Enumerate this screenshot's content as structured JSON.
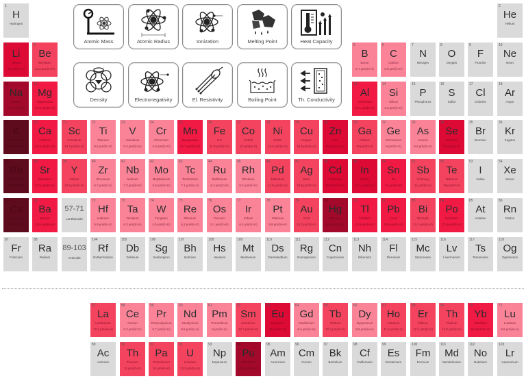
{
  "property_buttons": [
    {
      "label": "Atomic Mass",
      "icon": "scale-atom-icon"
    },
    {
      "label": "Atomic Radius",
      "icon": "atom-radius-icon"
    },
    {
      "label": "Ionization",
      "icon": "atom-ionization-icon"
    },
    {
      "label": "Melting Point",
      "icon": "melting-ice-icon"
    },
    {
      "label": "Heat Capacity",
      "icon": "thermometer-heat-icon"
    },
    {
      "label": "Density",
      "icon": "crystal-lattice-icon"
    },
    {
      "label": "Electronegativity",
      "icon": "atom-electron-icon"
    },
    {
      "label": "El. Resistivity",
      "icon": "cable-wires-icon"
    },
    {
      "label": "Boiling Point",
      "icon": "boiling-pot-icon"
    },
    {
      "label": "Th. Conductivity",
      "icon": "heat-flow-icon"
    }
  ],
  "unit": "µm/(m·K)",
  "elements": [
    {
      "num": "1",
      "sym": "H",
      "name": "Hydrogen",
      "val": "",
      "row": 1,
      "col": 1,
      "shade": "gray"
    },
    {
      "num": "2",
      "sym": "He",
      "name": "Helium",
      "val": "",
      "row": 1,
      "col": 18,
      "shade": "gray"
    },
    {
      "num": "3",
      "sym": "Li",
      "name": "Lithium",
      "val": "46 µm/(m·K)",
      "row": 2,
      "col": 1,
      "shade": "red"
    },
    {
      "num": "4",
      "sym": "Be",
      "name": "Beryllium",
      "val": "11.3 µm/(m·K)",
      "row": 2,
      "col": 2,
      "shade": "mid"
    },
    {
      "num": "5",
      "sym": "B",
      "name": "Boron",
      "val": "5-7 µm/(m·K)",
      "row": 2,
      "col": 13,
      "shade": "light"
    },
    {
      "num": "6",
      "sym": "C",
      "name": "Carbon",
      "val": "0.8 µm/(m·K)",
      "row": 2,
      "col": 14,
      "shade": "light"
    },
    {
      "num": "7",
      "sym": "N",
      "name": "Nitrogen",
      "val": "",
      "row": 2,
      "col": 15,
      "shade": "gray"
    },
    {
      "num": "8",
      "sym": "O",
      "name": "Oxygen",
      "val": "",
      "row": 2,
      "col": 16,
      "shade": "gray"
    },
    {
      "num": "9",
      "sym": "F",
      "name": "Fluorine",
      "val": "",
      "row": 2,
      "col": 17,
      "shade": "gray"
    },
    {
      "num": "10",
      "sym": "Ne",
      "name": "Neon",
      "val": "",
      "row": 2,
      "col": 18,
      "shade": "gray"
    },
    {
      "num": "11",
      "sym": "Na",
      "name": "Sodium",
      "val": "71 µm/(m·K)",
      "row": 3,
      "col": 1,
      "shade": "deep"
    },
    {
      "num": "12",
      "sym": "Mg",
      "name": "Magnesium",
      "val": "24.8 µm/(m·K)",
      "row": 3,
      "col": 2,
      "shade": "hot"
    },
    {
      "num": "13",
      "sym": "Al",
      "name": "Aluminium",
      "val": "23.1 µm/(m·K)",
      "row": 3,
      "col": 13,
      "shade": "hot"
    },
    {
      "num": "14",
      "sym": "Si",
      "name": "Silicon",
      "val": "2.6 µm/(m·K)",
      "row": 3,
      "col": 14,
      "shade": "light"
    },
    {
      "num": "15",
      "sym": "P",
      "name": "Phosphorus",
      "val": "",
      "row": 3,
      "col": 15,
      "shade": "gray"
    },
    {
      "num": "16",
      "sym": "S",
      "name": "Sulfur",
      "val": "",
      "row": 3,
      "col": 16,
      "shade": "gray"
    },
    {
      "num": "17",
      "sym": "Cl",
      "name": "Chlorine",
      "val": "",
      "row": 3,
      "col": 17,
      "shade": "gray"
    },
    {
      "num": "18",
      "sym": "Ar",
      "name": "Argon",
      "val": "",
      "row": 3,
      "col": 18,
      "shade": "gray"
    },
    {
      "num": "19",
      "sym": "K",
      "name": "Potassium",
      "val": "83.3 µm/(m·K)",
      "row": 4,
      "col": 1,
      "shade": "dark"
    },
    {
      "num": "20",
      "sym": "Ca",
      "name": "Calcium",
      "val": "22.3 µm/(m·K)",
      "row": 4,
      "col": 2,
      "shade": "hot"
    },
    {
      "num": "21",
      "sym": "Sc",
      "name": "Scandium",
      "val": "10.2 µm/(m·K)",
      "row": 4,
      "col": 3,
      "shade": "mid"
    },
    {
      "num": "22",
      "sym": "Ti",
      "name": "Titanium",
      "val": "8.6 µm/(m·K)",
      "row": 4,
      "col": 4,
      "shade": "light"
    },
    {
      "num": "23",
      "sym": "V",
      "name": "Vanadium",
      "val": "8.4 µm/(m·K)",
      "row": 4,
      "col": 5,
      "shade": "light"
    },
    {
      "num": "24",
      "sym": "Cr",
      "name": "Chromium",
      "val": "4.9 µm/(m·K)",
      "row": 4,
      "col": 6,
      "shade": "light"
    },
    {
      "num": "25",
      "sym": "Mn",
      "name": "Manganese",
      "val": "21.7 µm/(m·K)",
      "row": 4,
      "col": 7,
      "shade": "hot"
    },
    {
      "num": "26",
      "sym": "Fe",
      "name": "Iron",
      "val": "11.8 µm/(m·K)",
      "row": 4,
      "col": 8,
      "shade": "mid"
    },
    {
      "num": "27",
      "sym": "Co",
      "name": "Cobalt",
      "val": "13 µm/(m·K)",
      "row": 4,
      "col": 9,
      "shade": "mid"
    },
    {
      "num": "28",
      "sym": "Ni",
      "name": "Nickel",
      "val": "13.4 µm/(m·K)",
      "row": 4,
      "col": 10,
      "shade": "mid"
    },
    {
      "num": "29",
      "sym": "Cu",
      "name": "Copper",
      "val": "16.5 µm/(m·K)",
      "row": 4,
      "col": 11,
      "shade": "mid"
    },
    {
      "num": "30",
      "sym": "Zn",
      "name": "Zinc",
      "val": "30.2 µm/(m·K)",
      "row": 4,
      "col": 12,
      "shade": "red"
    },
    {
      "num": "31",
      "sym": "Ga",
      "name": "Gallium",
      "val": "18 µm/(m·K)",
      "row": 4,
      "col": 13,
      "shade": "mid"
    },
    {
      "num": "32",
      "sym": "Ge",
      "name": "Germanium",
      "val": "6 µm/(m·K)",
      "row": 4,
      "col": 14,
      "shade": "light"
    },
    {
      "num": "33",
      "sym": "As",
      "name": "Arsenic",
      "val": "5.6 µm/(m·K)",
      "row": 4,
      "col": 15,
      "shade": "light"
    },
    {
      "num": "34",
      "sym": "Se",
      "name": "Selenium",
      "val": "37 µm/(m·K)",
      "row": 4,
      "col": 16,
      "shade": "red"
    },
    {
      "num": "35",
      "sym": "Br",
      "name": "Bromine",
      "val": "",
      "row": 4,
      "col": 17,
      "shade": "gray"
    },
    {
      "num": "36",
      "sym": "Kr",
      "name": "Krypton",
      "val": "",
      "row": 4,
      "col": 18,
      "shade": "gray"
    },
    {
      "num": "37",
      "sym": "Rb",
      "name": "Rubidium",
      "val": "90 µm/(m·K)",
      "row": 5,
      "col": 1,
      "shade": "dark"
    },
    {
      "num": "38",
      "sym": "Sr",
      "name": "Strontium",
      "val": "22.5 µm/(m·K)",
      "row": 5,
      "col": 2,
      "shade": "hot"
    },
    {
      "num": "39",
      "sym": "Y",
      "name": "Yttrium",
      "val": "10.6 µm/(m·K)",
      "row": 5,
      "col": 3,
      "shade": "mid"
    },
    {
      "num": "40",
      "sym": "Zr",
      "name": "Zirconium",
      "val": "5.7 µm/(m·K)",
      "row": 5,
      "col": 4,
      "shade": "light"
    },
    {
      "num": "41",
      "sym": "Nb",
      "name": "Niobium",
      "val": "7.3 µm/(m·K)",
      "row": 5,
      "col": 5,
      "shade": "light"
    },
    {
      "num": "42",
      "sym": "Mo",
      "name": "Molybdenum",
      "val": "4.8 µm/(m·K)",
      "row": 5,
      "col": 6,
      "shade": "light"
    },
    {
      "num": "43",
      "sym": "Tc",
      "name": "Technetium",
      "val": "7.1 µm/(m·K)",
      "row": 5,
      "col": 7,
      "shade": "light"
    },
    {
      "num": "44",
      "sym": "Ru",
      "name": "Ruthenium",
      "val": "6.4 µm/(m·K)",
      "row": 5,
      "col": 8,
      "shade": "light"
    },
    {
      "num": "45",
      "sym": "Rh",
      "name": "Rhodium",
      "val": "8.2 µm/(m·K)",
      "row": 5,
      "col": 9,
      "shade": "light"
    },
    {
      "num": "46",
      "sym": "Pd",
      "name": "Palladium",
      "val": "11.8 µm/(m·K)",
      "row": 5,
      "col": 10,
      "shade": "mid"
    },
    {
      "num": "47",
      "sym": "Ag",
      "name": "Silver",
      "val": "18.9 µm/(m·K)",
      "row": 5,
      "col": 11,
      "shade": "mid"
    },
    {
      "num": "48",
      "sym": "Cd",
      "name": "Cadmium",
      "val": "30.8 µm/(m·K)",
      "row": 5,
      "col": 12,
      "shade": "red"
    },
    {
      "num": "49",
      "sym": "In",
      "name": "Indium",
      "val": "32.1 µm/(m·K)",
      "row": 5,
      "col": 13,
      "shade": "red"
    },
    {
      "num": "50",
      "sym": "Sn",
      "name": "Tin",
      "val": "22 µm/(m·K)",
      "row": 5,
      "col": 14,
      "shade": "hot"
    },
    {
      "num": "51",
      "sym": "Sb",
      "name": "Antimony",
      "val": "11 µm/(m·K)",
      "row": 5,
      "col": 15,
      "shade": "mid"
    },
    {
      "num": "52",
      "sym": "Te",
      "name": "Tellurium",
      "val": "18 µm/(m·K)",
      "row": 5,
      "col": 16,
      "shade": "mid"
    },
    {
      "num": "53",
      "sym": "I",
      "name": "Iodine",
      "val": "",
      "row": 5,
      "col": 17,
      "shade": "gray"
    },
    {
      "num": "54",
      "sym": "Xe",
      "name": "Xenon",
      "val": "",
      "row": 5,
      "col": 18,
      "shade": "gray"
    },
    {
      "num": "55",
      "sym": "Cs",
      "name": "Caesium",
      "val": "97 µm/(m·K)",
      "row": 6,
      "col": 1,
      "shade": "dark"
    },
    {
      "num": "56",
      "sym": "Ba",
      "name": "Barium",
      "val": "20.6 µm/(m·K)",
      "row": 6,
      "col": 2,
      "shade": "hot"
    },
    {
      "num": "",
      "sym": "57-71",
      "name": "Lanthanoids",
      "val": "",
      "row": 6,
      "col": 3,
      "shade": "gray",
      "range": true
    },
    {
      "num": "72",
      "sym": "Hf",
      "name": "Hafnium",
      "val": "5.9 µm/(m·K)",
      "row": 6,
      "col": 4,
      "shade": "light"
    },
    {
      "num": "73",
      "sym": "Ta",
      "name": "Tantalum",
      "val": "6.3 µm/(m·K)",
      "row": 6,
      "col": 5,
      "shade": "light"
    },
    {
      "num": "74",
      "sym": "W",
      "name": "Tungsten",
      "val": "4.5 µm/(m·K)",
      "row": 6,
      "col": 6,
      "shade": "light"
    },
    {
      "num": "75",
      "sym": "Re",
      "name": "Rhenium",
      "val": "6.2 µm/(m·K)",
      "row": 6,
      "col": 7,
      "shade": "light"
    },
    {
      "num": "76",
      "sym": "Os",
      "name": "Osmium",
      "val": "5.1 µm/(m·K)",
      "row": 6,
      "col": 8,
      "shade": "light"
    },
    {
      "num": "77",
      "sym": "Ir",
      "name": "Iridium",
      "val": "6.4 µm/(m·K)",
      "row": 6,
      "col": 9,
      "shade": "light"
    },
    {
      "num": "78",
      "sym": "Pt",
      "name": "Platinum",
      "val": "8.8 µm/(m·K)",
      "row": 6,
      "col": 10,
      "shade": "light"
    },
    {
      "num": "79",
      "sym": "Au",
      "name": "Gold",
      "val": "14.2 µm/(m·K)",
      "row": 6,
      "col": 11,
      "shade": "mid"
    },
    {
      "num": "80",
      "sym": "Hg",
      "name": "Mercury",
      "val": "60.4 µm/(m·K)",
      "row": 6,
      "col": 12,
      "shade": "deep"
    },
    {
      "num": "81",
      "sym": "Tl",
      "name": "Thallium",
      "val": "29.9 µm/(m·K)",
      "row": 6,
      "col": 13,
      "shade": "hot"
    },
    {
      "num": "82",
      "sym": "Pb",
      "name": "Lead",
      "val": "28.9 µm/(m·K)",
      "row": 6,
      "col": 14,
      "shade": "hot"
    },
    {
      "num": "83",
      "sym": "Bi",
      "name": "Bismuth",
      "val": "13.4 µm/(m·K)",
      "row": 6,
      "col": 15,
      "shade": "mid"
    },
    {
      "num": "84",
      "sym": "Po",
      "name": "Polonium",
      "val": "23.5 µm/(m·K)",
      "row": 6,
      "col": 16,
      "shade": "hot"
    },
    {
      "num": "85",
      "sym": "At",
      "name": "Astatine",
      "val": "",
      "row": 6,
      "col": 17,
      "shade": "gray"
    },
    {
      "num": "86",
      "sym": "Rn",
      "name": "Radon",
      "val": "",
      "row": 6,
      "col": 18,
      "shade": "gray"
    },
    {
      "num": "87",
      "sym": "Fr",
      "name": "Francium",
      "val": "",
      "row": 7,
      "col": 1,
      "shade": "gray"
    },
    {
      "num": "88",
      "sym": "Ra",
      "name": "Radium",
      "val": "",
      "row": 7,
      "col": 2,
      "shade": "gray"
    },
    {
      "num": "",
      "sym": "89-103",
      "name": "Actinoids",
      "val": "",
      "row": 7,
      "col": 3,
      "shade": "gray",
      "range": true
    },
    {
      "num": "104",
      "sym": "Rf",
      "name": "Rutherfordium",
      "val": "",
      "row": 7,
      "col": 4,
      "shade": "gray"
    },
    {
      "num": "105",
      "sym": "Db",
      "name": "Dubnium",
      "val": "",
      "row": 7,
      "col": 5,
      "shade": "gray"
    },
    {
      "num": "106",
      "sym": "Sg",
      "name": "Seaborgium",
      "val": "",
      "row": 7,
      "col": 6,
      "shade": "gray"
    },
    {
      "num": "107",
      "sym": "Bh",
      "name": "Bohrium",
      "val": "",
      "row": 7,
      "col": 7,
      "shade": "gray"
    },
    {
      "num": "108",
      "sym": "Hs",
      "name": "Hassium",
      "val": "",
      "row": 7,
      "col": 8,
      "shade": "gray"
    },
    {
      "num": "109",
      "sym": "Mt",
      "name": "Meitnerium",
      "val": "",
      "row": 7,
      "col": 9,
      "shade": "gray"
    },
    {
      "num": "110",
      "sym": "Ds",
      "name": "Darmstadtium",
      "val": "",
      "row": 7,
      "col": 10,
      "shade": "gray"
    },
    {
      "num": "111",
      "sym": "Rg",
      "name": "Roentgenium",
      "val": "",
      "row": 7,
      "col": 11,
      "shade": "gray"
    },
    {
      "num": "112",
      "sym": "Cn",
      "name": "Copernicium",
      "val": "",
      "row": 7,
      "col": 12,
      "shade": "gray"
    },
    {
      "num": "113",
      "sym": "Nh",
      "name": "Nihonium",
      "val": "",
      "row": 7,
      "col": 13,
      "shade": "gray"
    },
    {
      "num": "114",
      "sym": "Fl",
      "name": "Flerovium",
      "val": "",
      "row": 7,
      "col": 14,
      "shade": "gray"
    },
    {
      "num": "115",
      "sym": "Mc",
      "name": "Moscovium",
      "val": "",
      "row": 7,
      "col": 15,
      "shade": "gray"
    },
    {
      "num": "116",
      "sym": "Lv",
      "name": "Livermorium",
      "val": "",
      "row": 7,
      "col": 16,
      "shade": "gray"
    },
    {
      "num": "117",
      "sym": "Ts",
      "name": "Tennessine",
      "val": "",
      "row": 7,
      "col": 17,
      "shade": "gray"
    },
    {
      "num": "118",
      "sym": "Og",
      "name": "Oganesson",
      "val": "",
      "row": 7,
      "col": 18,
      "shade": "gray"
    },
    {
      "num": "57",
      "sym": "La",
      "name": "Lanthanum",
      "val": "12.1 µm/(m·K)",
      "row": 9,
      "col": 4,
      "shade": "mid"
    },
    {
      "num": "58",
      "sym": "Ce",
      "name": "Cerium",
      "val": "6.3 µm/(m·K)",
      "row": 9,
      "col": 5,
      "shade": "light"
    },
    {
      "num": "59",
      "sym": "Pr",
      "name": "Praseodymium",
      "val": "6.7 µm/(m·K)",
      "row": 9,
      "col": 6,
      "shade": "light"
    },
    {
      "num": "60",
      "sym": "Nd",
      "name": "Neodymium",
      "val": "9.6 µm/(m·K)",
      "row": 9,
      "col": 7,
      "shade": "light"
    },
    {
      "num": "61",
      "sym": "Pm",
      "name": "Promethium",
      "val": "9 µm/(m·K)",
      "row": 9,
      "col": 8,
      "shade": "light"
    },
    {
      "num": "62",
      "sym": "Sm",
      "name": "Samarium",
      "val": "12.7 µm/(m·K)",
      "row": 9,
      "col": 9,
      "shade": "mid"
    },
    {
      "num": "63",
      "sym": "Eu",
      "name": "Europium",
      "val": "35 µm/(m·K)",
      "row": 9,
      "col": 10,
      "shade": "red"
    },
    {
      "num": "64",
      "sym": "Gd",
      "name": "Gadolinium",
      "val": "9.4 µm/(m·K)",
      "row": 9,
      "col": 11,
      "shade": "light"
    },
    {
      "num": "65",
      "sym": "Tb",
      "name": "Terbium",
      "val": "10.3 µm/(m·K)",
      "row": 9,
      "col": 12,
      "shade": "mid"
    },
    {
      "num": "66",
      "sym": "Dy",
      "name": "Dysprosium",
      "val": "9.9 µm/(m·K)",
      "row": 9,
      "col": 13,
      "shade": "light"
    },
    {
      "num": "67",
      "sym": "Ho",
      "name": "Holmium",
      "val": "11.2 µm/(m·K)",
      "row": 9,
      "col": 14,
      "shade": "mid"
    },
    {
      "num": "68",
      "sym": "Er",
      "name": "Erbium",
      "val": "12.2 µm/(m·K)",
      "row": 9,
      "col": 15,
      "shade": "mid"
    },
    {
      "num": "69",
      "sym": "Th",
      "name": "Thulium",
      "val": "13.3 µm/(m·K)",
      "row": 9,
      "col": 16,
      "shade": "mid"
    },
    {
      "num": "70",
      "sym": "Yb",
      "name": "Ytterbium",
      "val": "26.3 µm/(m·K)",
      "row": 9,
      "col": 17,
      "shade": "hot"
    },
    {
      "num": "71",
      "sym": "Lu",
      "name": "Lutetium",
      "val": "9.9 µm/(m·K)",
      "row": 9,
      "col": 18,
      "shade": "light"
    },
    {
      "num": "89",
      "sym": "Ac",
      "name": "Actinium",
      "val": "",
      "row": 10,
      "col": 4,
      "shade": "gray"
    },
    {
      "num": "90",
      "sym": "Th",
      "name": "Thorium",
      "val": "11 µm/(m·K)",
      "row": 10,
      "col": 5,
      "shade": "mid"
    },
    {
      "num": "91",
      "sym": "Pa",
      "name": "Protactinium",
      "val": "10 µm/(m·K)",
      "row": 10,
      "col": 6,
      "shade": "mid"
    },
    {
      "num": "92",
      "sym": "U",
      "name": "Uranium",
      "val": "13.9 µm/(m·K)",
      "row": 10,
      "col": 7,
      "shade": "mid"
    },
    {
      "num": "93",
      "sym": "Np",
      "name": "Neptunium",
      "val": "",
      "row": 10,
      "col": 8,
      "shade": "gray"
    },
    {
      "num": "94",
      "sym": "Pu",
      "name": "Plutonium",
      "val": "46.7 µm/(m·K)",
      "row": 10,
      "col": 9,
      "shade": "deep"
    },
    {
      "num": "95",
      "sym": "Am",
      "name": "Americium",
      "val": "",
      "row": 10,
      "col": 10,
      "shade": "gray"
    },
    {
      "num": "96",
      "sym": "Cm",
      "name": "Curium",
      "val": "",
      "row": 10,
      "col": 11,
      "shade": "gray"
    },
    {
      "num": "97",
      "sym": "Bk",
      "name": "Berkelium",
      "val": "",
      "row": 10,
      "col": 12,
      "shade": "gray"
    },
    {
      "num": "98",
      "sym": "Cf",
      "name": "Californium",
      "val": "",
      "row": 10,
      "col": 13,
      "shade": "gray"
    },
    {
      "num": "99",
      "sym": "Es",
      "name": "Einsteinium",
      "val": "",
      "row": 10,
      "col": 14,
      "shade": "gray"
    },
    {
      "num": "100",
      "sym": "Fm",
      "name": "Fermium",
      "val": "",
      "row": 10,
      "col": 15,
      "shade": "gray"
    },
    {
      "num": "101",
      "sym": "Md",
      "name": "Mendelevium",
      "val": "",
      "row": 10,
      "col": 16,
      "shade": "gray"
    },
    {
      "num": "102",
      "sym": "No",
      "name": "Nobelium",
      "val": "",
      "row": 10,
      "col": 17,
      "shade": "gray"
    },
    {
      "num": "103",
      "sym": "Lr",
      "name": "Lawrencium",
      "val": "",
      "row": 10,
      "col": 18,
      "shade": "gray"
    }
  ],
  "colors": {
    "gray": "#dadada",
    "dark": "#5e0b1e",
    "deep": "#a3092b",
    "red": "#dd0a36",
    "hot": "#f01a45",
    "mid": "#f4435f",
    "pink": "#f76a83",
    "light": "#fa8398"
  }
}
